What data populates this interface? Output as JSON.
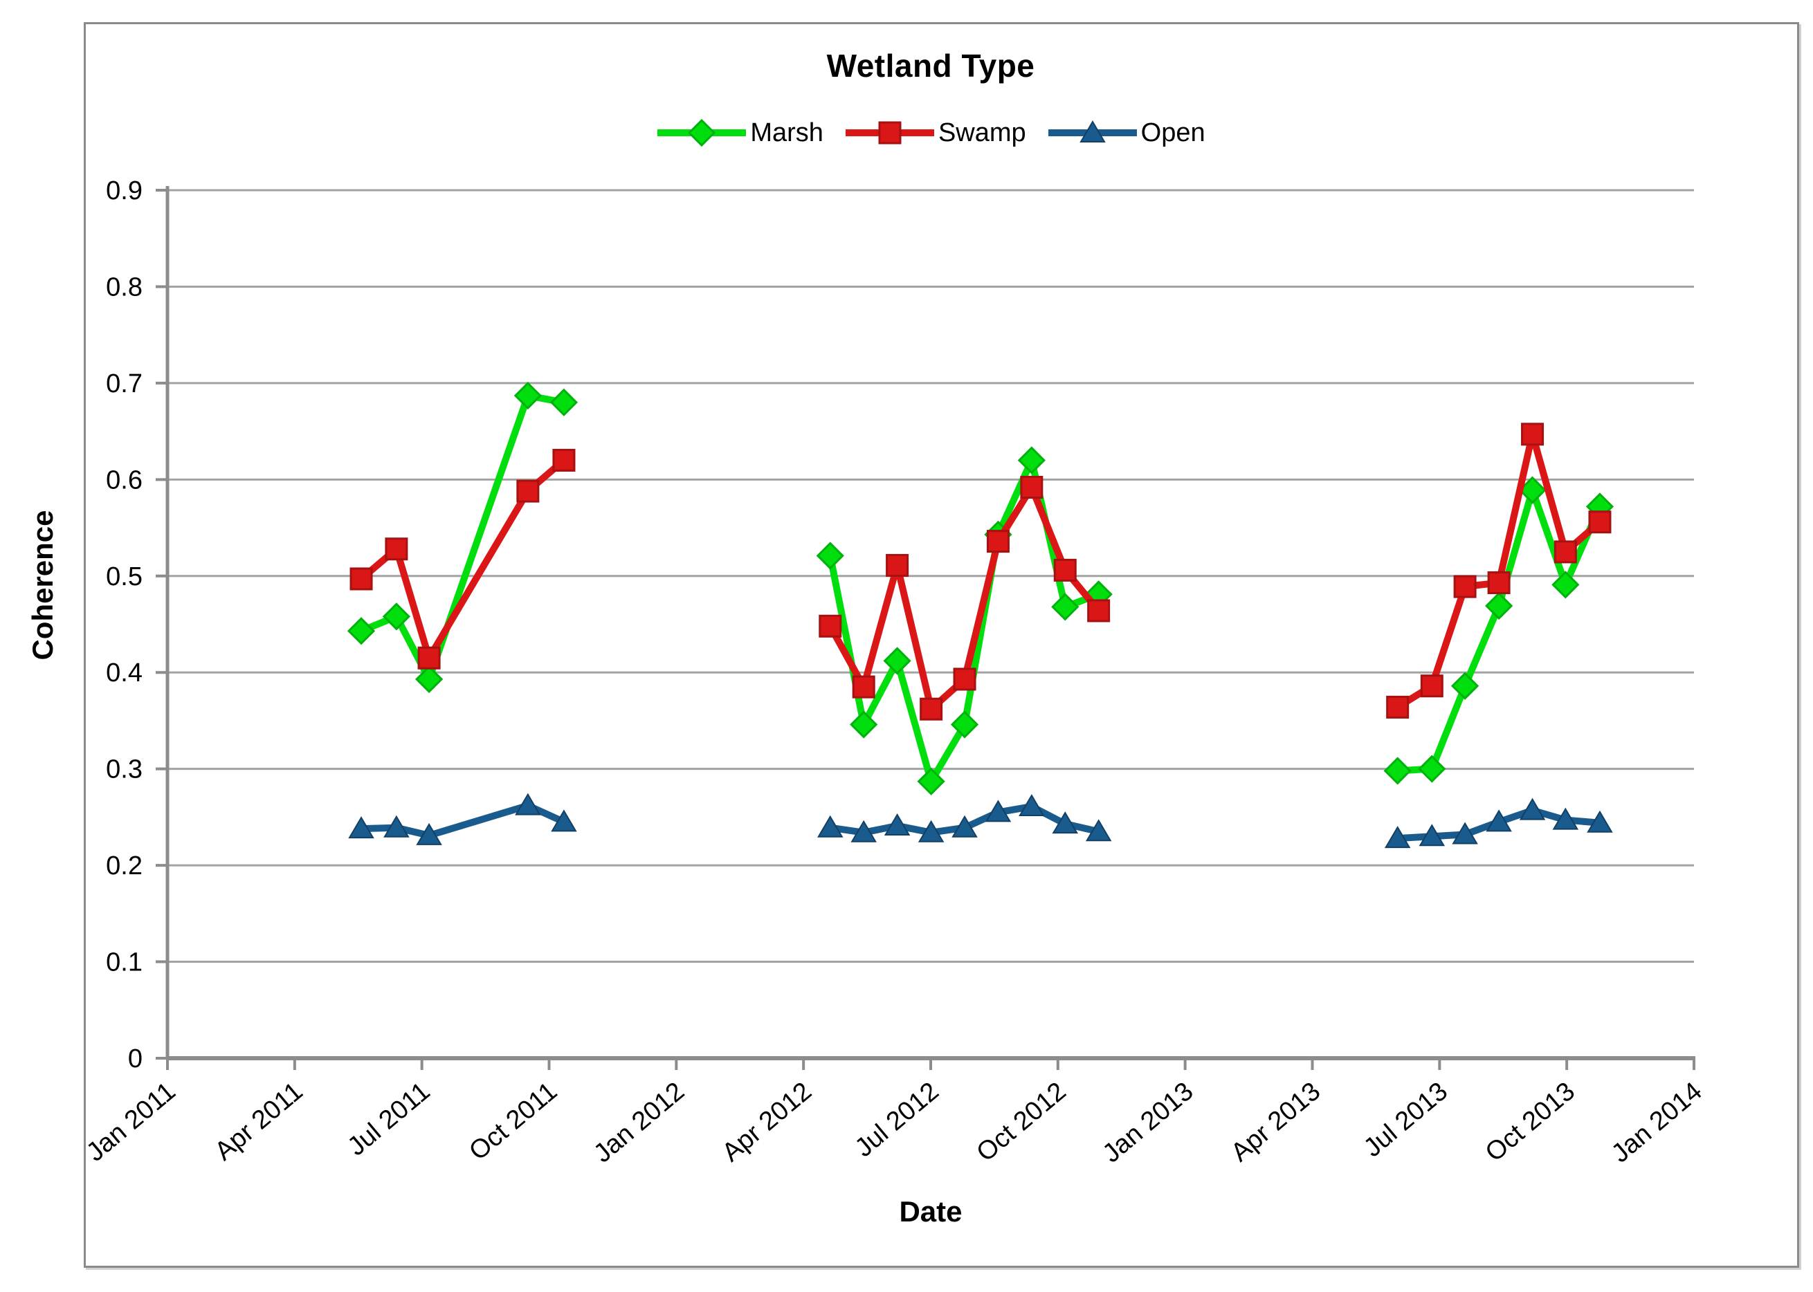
{
  "chart_data": {
    "type": "line",
    "title": "Wetland Type",
    "xlabel": "Date",
    "ylabel": "Coherence",
    "grid": "horizontal",
    "legend_position": "top-center",
    "ylim": [
      0,
      0.9
    ],
    "y_tick_step": 0.1,
    "y_tick_labels": [
      "0",
      "0.1",
      "0.2",
      "0.3",
      "0.4",
      "0.5",
      "0.6",
      "0.7",
      "0.8",
      "0.9"
    ],
    "x_axis_unit": "months since Jan 2011",
    "xlim_months": [
      0,
      36
    ],
    "x_tick_months": [
      0,
      3,
      6,
      9,
      12,
      15,
      18,
      21,
      24,
      27,
      30,
      33,
      36
    ],
    "x_tick_labels": [
      "Jan 2011",
      "Apr 2011",
      "Jul 2011",
      "Oct 2011",
      "Jan 2012",
      "Apr 2012",
      "Jul 2012",
      "Oct 2012",
      "Jan 2013",
      "Apr 2013",
      "Jul 2013",
      "Oct 2013",
      "Jan 2014"
    ],
    "x_months": [
      4.57,
      5.4,
      6.17,
      8.5,
      9.35,
      15.63,
      16.42,
      17.21,
      18.01,
      18.8,
      19.59,
      20.38,
      21.17,
      21.96,
      29.01,
      29.82,
      30.6,
      31.4,
      32.19,
      32.97,
      33.78
    ],
    "segments": [
      [
        0,
        4
      ],
      [
        5,
        13
      ],
      [
        14,
        20
      ]
    ],
    "series": [
      {
        "name": "Marsh",
        "marker": "diamond",
        "color": "#00DE0E",
        "edge": "#00B20B",
        "values": [
          0.443,
          0.458,
          0.393,
          0.687,
          0.68,
          0.521,
          0.346,
          0.412,
          0.287,
          0.346,
          0.543,
          0.62,
          0.468,
          0.481,
          0.298,
          0.3,
          0.386,
          0.469,
          0.589,
          0.491,
          0.572
        ]
      },
      {
        "name": "Swamp",
        "marker": "square",
        "color": "#DB1616",
        "edge": "#A61111",
        "values": [
          0.497,
          0.528,
          0.415,
          0.588,
          0.62,
          0.448,
          0.385,
          0.511,
          0.362,
          0.393,
          0.536,
          0.592,
          0.506,
          0.464,
          0.364,
          0.386,
          0.489,
          0.493,
          0.647,
          0.525,
          0.556
        ]
      },
      {
        "name": "Open",
        "marker": "triangle",
        "color": "#1A5B8E",
        "edge": "#123F64",
        "values": [
          0.238,
          0.239,
          0.231,
          0.262,
          0.245,
          0.239,
          0.234,
          0.241,
          0.234,
          0.239,
          0.255,
          0.261,
          0.243,
          0.235,
          0.228,
          0.23,
          0.232,
          0.245,
          0.257,
          0.247,
          0.244
        ]
      }
    ],
    "style_colors": {
      "gridline": "#A3A3A3",
      "axis": "#8C8C8C",
      "frame": "#8A8A8A",
      "text": "#000000"
    }
  }
}
